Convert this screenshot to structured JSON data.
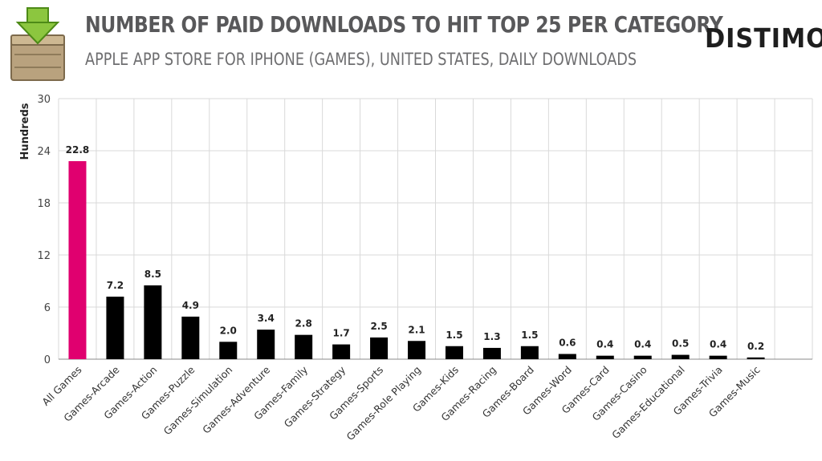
{
  "header": {
    "title": "NUMBER OF PAID DOWNLOADS TO HIT TOP 25 PER CATEGORY",
    "subtitle": "APPLE APP STORE FOR IPHONE (GAMES), UNITED STATES, DAILY DOWNLOADS",
    "brand": "DISTIMO"
  },
  "logo": {
    "icon": "download-crate-icon"
  },
  "colors": {
    "highlight": "#e0006f",
    "bar": "#000000",
    "grid": "#d9d9d9",
    "text": "#222222"
  },
  "chart_data": {
    "type": "bar",
    "title": "NUMBER OF PAID DOWNLOADS TO HIT TOP 25 PER CATEGORY",
    "ylabel": "Hundreds",
    "xlabel": "",
    "ylim": [
      0,
      30
    ],
    "yticks": [
      "0",
      "6",
      "12",
      "18",
      "24",
      "30"
    ],
    "ytick_values": [
      0,
      6,
      12,
      18,
      24,
      30
    ],
    "grid": true,
    "categories": [
      "All Games",
      "Games-Arcade",
      "Games-Action",
      "Games-Puzzle",
      "Games-Simulation",
      "Games-Adventure",
      "Games-Family",
      "Games-Strategy",
      "Games-Sports",
      "Games-Role Playing",
      "Games-Kids",
      "Games-Racing",
      "Games-Board",
      "Games-Word",
      "Games-Card",
      "Games-Casino",
      "Games-Educational",
      "Games-Trivia",
      "Games-Music"
    ],
    "values": [
      22.8,
      7.2,
      8.5,
      4.9,
      2.0,
      3.4,
      2.8,
      1.7,
      2.5,
      2.1,
      1.5,
      1.3,
      1.5,
      0.6,
      0.4,
      0.4,
      0.5,
      0.4,
      0.2
    ],
    "data_labels": [
      "22.8",
      "7.2",
      "8.5",
      "4.9",
      "2.0",
      "3.4",
      "2.8",
      "1.7",
      "2.5",
      "2.1",
      "1.5",
      "1.3",
      "1.5",
      "0.6",
      "0.4",
      "0.4",
      "0.5",
      "0.4",
      "0.2"
    ],
    "highlighted_category": "All Games"
  }
}
